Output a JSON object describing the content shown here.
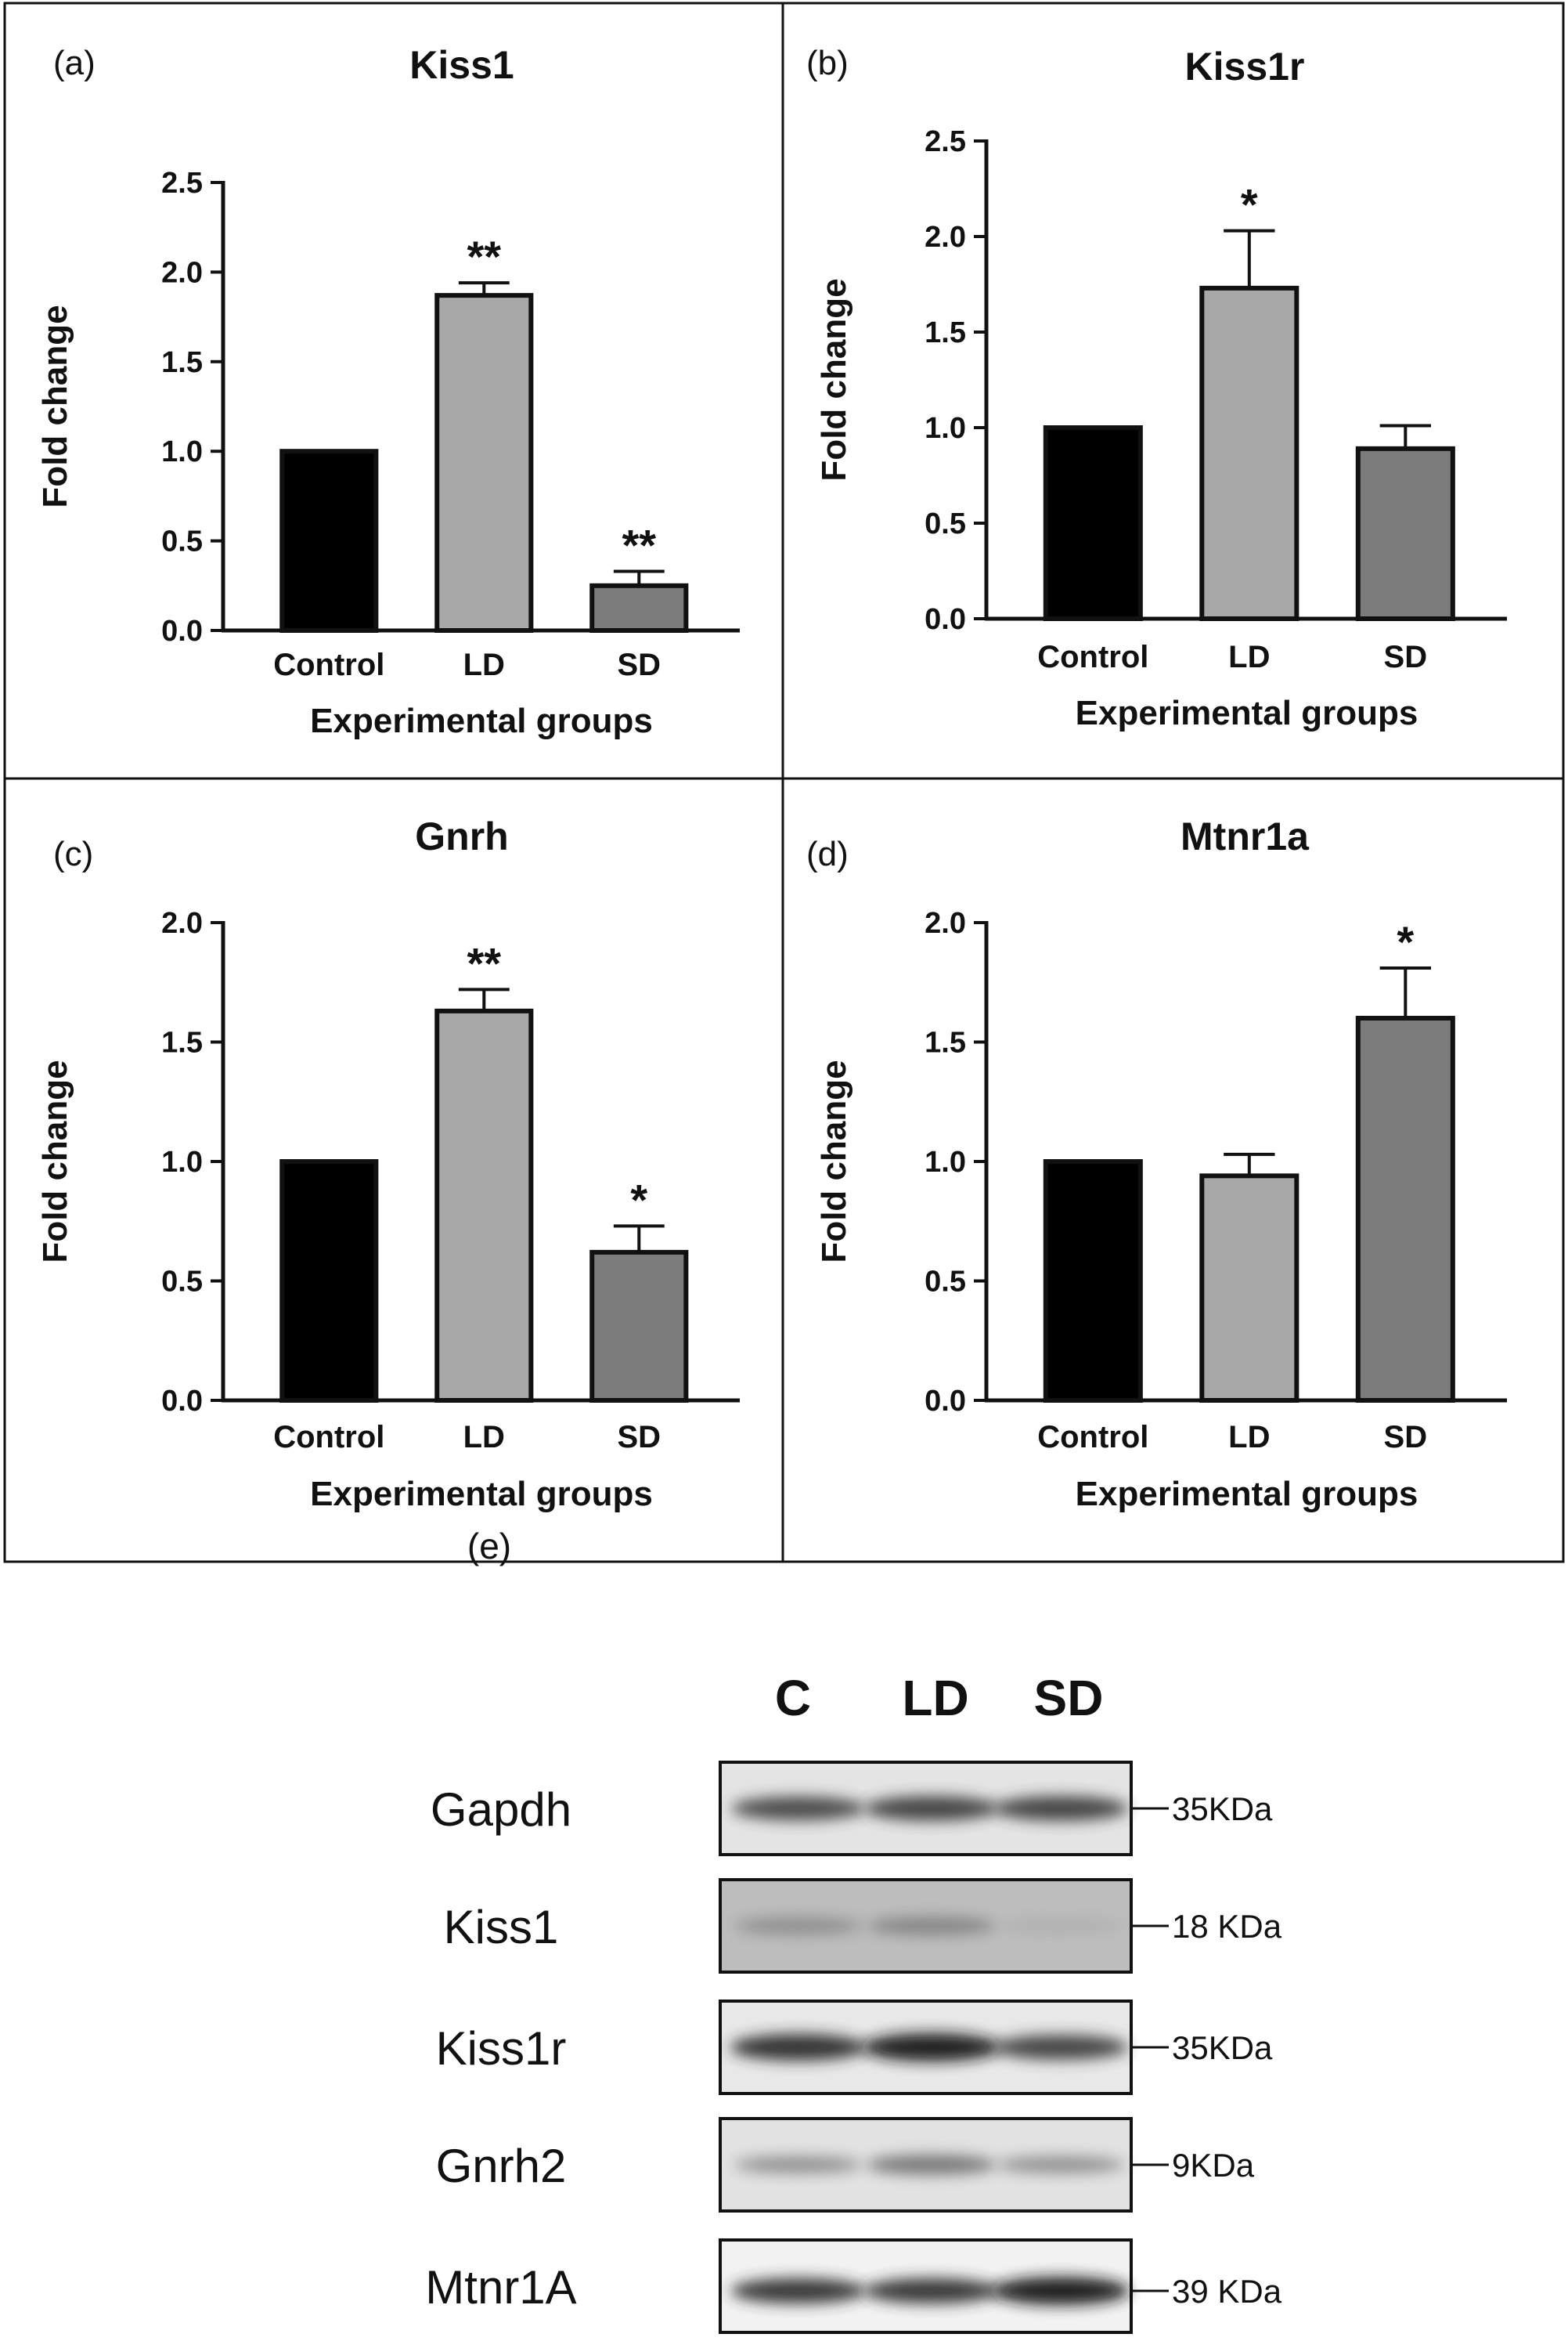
{
  "chart_data": [
    {
      "panel": "(a)",
      "type": "bar",
      "title": "Kiss1",
      "xlabel": "Experimental groups",
      "ylabel": "Fold change",
      "categories": [
        "Control",
        "LD",
        "SD"
      ],
      "values": [
        1.0,
        1.87,
        0.25
      ],
      "errors": [
        0,
        0.07,
        0.08
      ],
      "significance": [
        "",
        "**",
        "**"
      ],
      "ylim": [
        0,
        2.5
      ],
      "yticks": [
        "0.0",
        "0.5",
        "1.0",
        "1.5",
        "2.0",
        "2.5"
      ],
      "colors": [
        "#000000",
        "#a8a8a8",
        "#7c7c7c"
      ]
    },
    {
      "panel": "(b)",
      "type": "bar",
      "title": "Kiss1r",
      "xlabel": "Experimental groups",
      "ylabel": "Fold change",
      "categories": [
        "Control",
        "LD",
        "SD"
      ],
      "values": [
        1.0,
        1.73,
        0.89
      ],
      "errors": [
        0,
        0.3,
        0.12
      ],
      "significance": [
        "",
        "*",
        ""
      ],
      "ylim": [
        0,
        2.5
      ],
      "yticks": [
        "0.0",
        "0.5",
        "1.0",
        "1.5",
        "2.0",
        "2.5"
      ],
      "colors": [
        "#000000",
        "#a8a8a8",
        "#7c7c7c"
      ]
    },
    {
      "panel": "(c)",
      "type": "bar",
      "title": "Gnrh",
      "xlabel": "Experimental groups",
      "ylabel": "Fold change",
      "categories": [
        "Control",
        "LD",
        "SD"
      ],
      "values": [
        1.0,
        1.63,
        0.62
      ],
      "errors": [
        0,
        0.09,
        0.11
      ],
      "significance": [
        "",
        "**",
        "*"
      ],
      "ylim": [
        0,
        2.0
      ],
      "yticks": [
        "0.0",
        "0.5",
        "1.0",
        "1.5",
        "2.0"
      ],
      "colors": [
        "#000000",
        "#a8a8a8",
        "#7c7c7c"
      ]
    },
    {
      "panel": "(d)",
      "type": "bar",
      "title": "Mtnr1a",
      "xlabel": "Experimental groups",
      "ylabel": "Fold change",
      "categories": [
        "Control",
        "LD",
        "SD"
      ],
      "values": [
        1.0,
        0.94,
        1.6
      ],
      "errors": [
        0,
        0.09,
        0.21
      ],
      "significance": [
        "",
        "",
        "*"
      ],
      "ylim": [
        0,
        2.0
      ],
      "yticks": [
        "0.0",
        "0.5",
        "1.0",
        "1.5",
        "2.0"
      ],
      "colors": [
        "#000000",
        "#a8a8a8",
        "#7c7c7c"
      ]
    }
  ],
  "western_blot": {
    "panel": "(e)",
    "lanes": [
      "C",
      "LD",
      "SD"
    ],
    "rows": [
      {
        "protein": "Gapdh",
        "size": "35KDa",
        "intensity": [
          0.75,
          0.8,
          0.8
        ]
      },
      {
        "protein": "Kiss1",
        "size": "18 KDa",
        "intensity": [
          0.35,
          0.4,
          0.15
        ]
      },
      {
        "protein": "Kiss1r",
        "size": "35KDa",
        "intensity": [
          0.9,
          1.0,
          0.8
        ]
      },
      {
        "protein": "Gnrh2",
        "size": "9KDa",
        "intensity": [
          0.35,
          0.5,
          0.35
        ]
      },
      {
        "protein": "Mtnr1A",
        "size": "39 KDa",
        "intensity": [
          0.85,
          0.85,
          1.0
        ]
      }
    ]
  }
}
